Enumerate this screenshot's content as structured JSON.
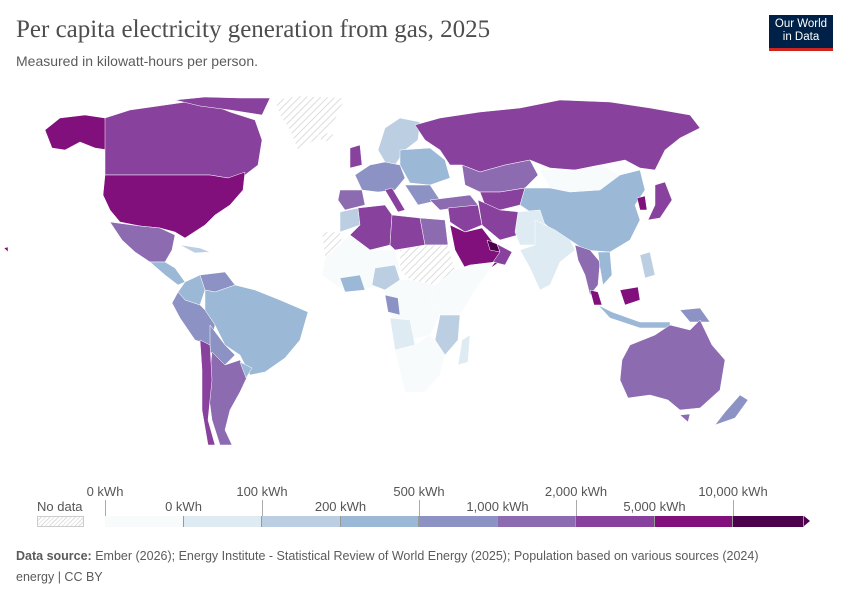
{
  "header": {
    "title": "Per capita electricity generation from gas, 2025",
    "subtitle": "Measured in kilowatt-hours per person.",
    "logo": "Our World in Data"
  },
  "legend": {
    "no_data_label": "No data",
    "upper_ticks": [
      "0 kWh",
      "100 kWh",
      "500 kWh",
      "2,000 kWh",
      "10,000 kWh"
    ],
    "lower_ticks": [
      "0 kWh",
      "200 kWh",
      "1,000 kWh",
      "5,000 kWh"
    ],
    "colors": [
      "#f7fbfc",
      "#deebf2",
      "#bccfe2",
      "#9bb8d7",
      "#8c93c4",
      "#8c6bb1",
      "#88419d",
      "#810f7c",
      "#4d004b"
    ]
  },
  "footer": {
    "source_label": "Data source:",
    "source_text": " Ember (2026); Energy Institute - Statistical Review of World Energy (2025); Population based on various sources (2024)",
    "license": "energy | CC BY"
  }
}
